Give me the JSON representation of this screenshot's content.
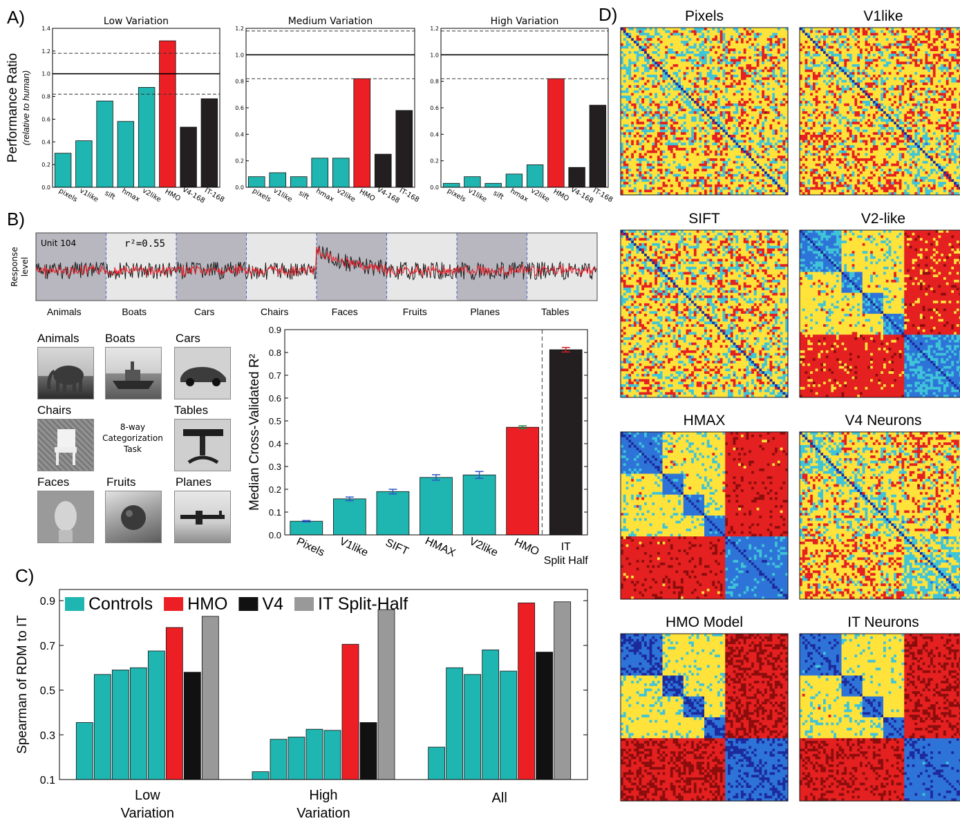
{
  "panel_labels": {
    "a": "A)",
    "b": "B)",
    "c": "C)",
    "d": "D)"
  },
  "chart_data": [
    {
      "id": "A-low",
      "type": "bar",
      "title": "Low Variation",
      "ylabel": "Performance Ratio",
      "ylabel_sub": "(relative to human)",
      "ylim": [
        0,
        1.4
      ],
      "yticks": [
        "0.0",
        "0.2",
        "0.4",
        "0.6",
        "0.8",
        "1.0",
        "1.2",
        "1.4"
      ],
      "categories": [
        "pixels",
        "v1like",
        "sift",
        "hmax",
        "v2like",
        "HMO",
        "V4-168",
        "IT-168"
      ],
      "values": [
        0.3,
        0.41,
        0.76,
        0.58,
        0.88,
        1.29,
        0.53,
        0.78
      ],
      "colors": [
        "#1fb5b0",
        "#1fb5b0",
        "#1fb5b0",
        "#1fb5b0",
        "#1fb5b0",
        "#ec1f25",
        "#231f20",
        "#231f20"
      ],
      "reference_line": 1.0,
      "dashed_lines": [
        0.82,
        1.18
      ]
    },
    {
      "id": "A-medium",
      "type": "bar",
      "title": "Medium Variation",
      "ylim": [
        0,
        1.2
      ],
      "yticks": [
        "0.0",
        "0.2",
        "0.4",
        "0.6",
        "0.8",
        "1.0",
        "1.2"
      ],
      "categories": [
        "pixels",
        "v1like",
        "sift",
        "hmax",
        "v2like",
        "HMO",
        "V4-168",
        "IT-168"
      ],
      "values": [
        0.08,
        0.11,
        0.08,
        0.22,
        0.22,
        0.82,
        0.25,
        0.58
      ],
      "colors": [
        "#1fb5b0",
        "#1fb5b0",
        "#1fb5b0",
        "#1fb5b0",
        "#1fb5b0",
        "#ec1f25",
        "#231f20",
        "#231f20"
      ],
      "reference_line": 1.0,
      "dashed_lines": [
        0.82,
        1.18
      ]
    },
    {
      "id": "A-high",
      "type": "bar",
      "title": "High Variation",
      "ylim": [
        0,
        1.2
      ],
      "yticks": [
        "0.0",
        "0.2",
        "0.4",
        "0.6",
        "0.8",
        "1.0",
        "1.2"
      ],
      "categories": [
        "pixels",
        "v1like",
        "sift",
        "hmax",
        "v2like",
        "HMO",
        "V4-168",
        "IT-168"
      ],
      "values": [
        0.03,
        0.08,
        0.03,
        0.1,
        0.17,
        0.82,
        0.15,
        0.62
      ],
      "colors": [
        "#1fb5b0",
        "#1fb5b0",
        "#1fb5b0",
        "#1fb5b0",
        "#1fb5b0",
        "#ec1f25",
        "#231f20",
        "#231f20"
      ],
      "reference_line": 1.0,
      "dashed_lines": [
        0.82,
        1.18
      ]
    },
    {
      "id": "B-trace",
      "type": "line",
      "unit_label": "Unit 104",
      "r2_label": "r²=0.55",
      "ylabel": "Response level",
      "categories": [
        "Animals",
        "Boats",
        "Cars",
        "Chairs",
        "Faces",
        "Fruits",
        "Planes",
        "Tables"
      ],
      "series": [
        {
          "color": "#1a1a1a"
        },
        {
          "color": "#e8202a"
        }
      ]
    },
    {
      "id": "B-bar",
      "type": "bar",
      "ylabel": "Median Cross-Validated R²",
      "ylim": [
        0,
        0.9
      ],
      "yticks": [
        "0.0",
        "0.1",
        "0.2",
        "0.3",
        "0.4",
        "0.5",
        "0.6",
        "0.7",
        "0.8",
        "0.9"
      ],
      "categories": [
        "Pixels",
        "V1like",
        "SIFT",
        "HMAX",
        "V2like",
        "HMO",
        "IT Split Half"
      ],
      "values": [
        0.06,
        0.158,
        0.19,
        0.252,
        0.263,
        0.472,
        0.812
      ],
      "errors": [
        0.003,
        0.008,
        0.01,
        0.012,
        0.015,
        0.006,
        0.01
      ],
      "colors": [
        "#1fb5b0",
        "#1fb5b0",
        "#1fb5b0",
        "#1fb5b0",
        "#1fb5b0",
        "#ec1f25",
        "#231f20"
      ],
      "error_colors": [
        "#2f55c6",
        "#2f55c6",
        "#2f55c6",
        "#2f55c6",
        "#2f55c6",
        "#1a8a4a",
        "#d4202a"
      ]
    },
    {
      "id": "C",
      "type": "bar",
      "ylabel": "Spearman of RDM to IT",
      "ylim": [
        0.1,
        0.95
      ],
      "yticks": [
        "0.1",
        "0.3",
        "0.5",
        "0.7",
        "0.9"
      ],
      "legend": [
        {
          "label": "Controls",
          "color": "#1fb5b0"
        },
        {
          "label": "HMO",
          "color": "#ec1f25"
        },
        {
          "label": "V4",
          "color": "#111111"
        },
        {
          "label": "IT Split-Half",
          "color": "#999999"
        }
      ],
      "groups": [
        "Low Variation",
        "High Variation",
        "All"
      ],
      "values": [
        [
          0.355,
          0.57,
          0.59,
          0.6,
          0.675,
          0.78,
          0.58,
          0.83
        ],
        [
          0.135,
          0.28,
          0.29,
          0.325,
          0.32,
          0.705,
          0.355,
          0.86
        ],
        [
          0.245,
          0.6,
          0.57,
          0.68,
          0.585,
          0.89,
          0.67,
          0.895
        ]
      ],
      "colors": [
        "#1fb5b0",
        "#1fb5b0",
        "#1fb5b0",
        "#1fb5b0",
        "#1fb5b0",
        "#ec1f25",
        "#111111",
        "#999999"
      ]
    },
    {
      "id": "D",
      "type": "heatmap",
      "titles": [
        "Pixels",
        "V1like",
        "SIFT",
        "V2-like",
        "HMAX",
        "V4 Neurons",
        "HMO Model",
        "IT Neurons"
      ],
      "colorscale": [
        "#1c2a9c",
        "#2e74d8",
        "#3fc4d8",
        "#ffe23a",
        "#e42020",
        "#8c0d0d"
      ]
    }
  ],
  "B_images": {
    "task_label": "8-way Categorization Task",
    "thumbs": [
      "Animals",
      "Boats",
      "Cars",
      "Chairs",
      "Tables",
      "Faces",
      "Fruits",
      "Planes"
    ]
  }
}
